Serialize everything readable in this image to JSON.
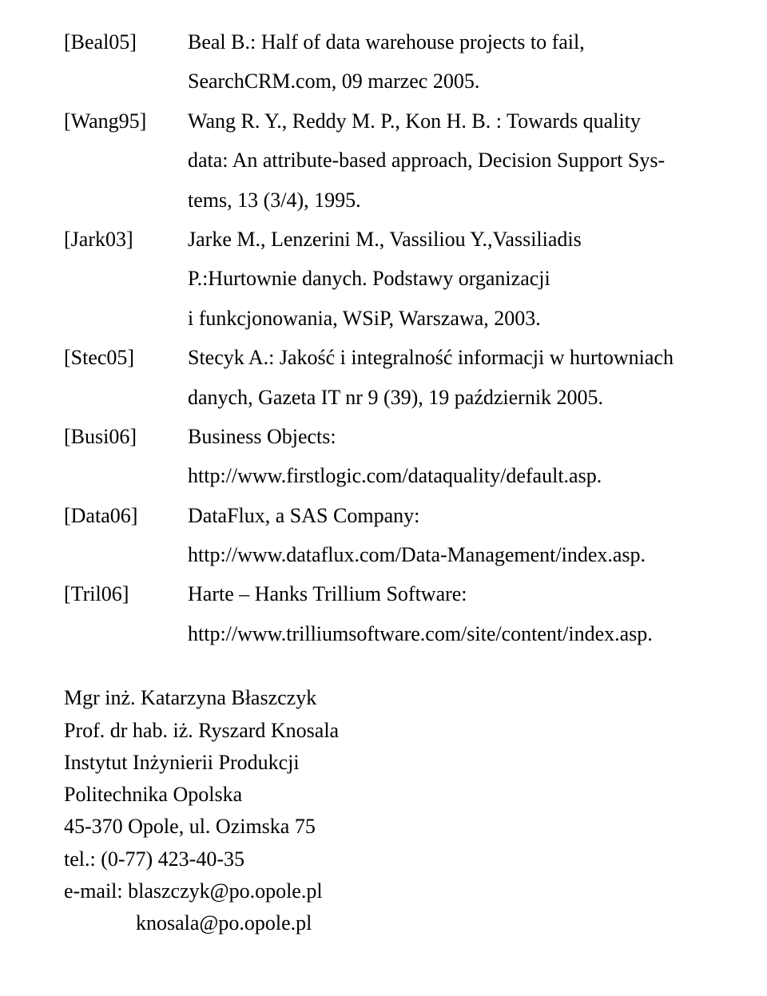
{
  "refs": [
    {
      "key": "[Beal05]",
      "lines": [
        {
          "text": "Beal B.: Half of data warehouse projects to fail,",
          "justify": true
        },
        {
          "text": "SearchCRM.com, 09 marzec 2005.",
          "justify": false
        }
      ]
    },
    {
      "key": "[Wang95]",
      "lines": [
        {
          "text": "Wang R. Y., Reddy M. P., Kon H. B. : Towards quality",
          "justify": true
        },
        {
          "text": "data: An attribute-based approach, Decision Support Sys-",
          "justify": true
        },
        {
          "text": "tems, 13 (3/4), 1995.",
          "justify": false
        }
      ]
    },
    {
      "key": "[Jark03]",
      "lines": [
        {
          "text": "Jarke M., Lenzerini M., Vassiliou Y.,Vassiliadis",
          "justify": true
        },
        {
          "text": "P.:Hurtownie danych. Podstawy organizacji",
          "justify": true
        },
        {
          "text": "i funkcjonowania, WSiP, Warszawa, 2003.",
          "justify": false
        }
      ]
    },
    {
      "key": "[Stec05]",
      "lines": [
        {
          "text": "Stecyk A.: Jakość i integralność informacji w hurtowniach",
          "justify": true
        },
        {
          "text": "danych, Gazeta IT nr 9 (39), 19 październik 2005.",
          "justify": false
        }
      ]
    },
    {
      "key": "[Busi06]",
      "lines": [
        {
          "text": "Business Objects:",
          "justify": false
        },
        {
          "text": "http://www.firstlogic.com/dataquality/default.asp.",
          "justify": false
        }
      ]
    },
    {
      "key": "[Data06]",
      "lines": [
        {
          "text": "DataFlux, a SAS Company:",
          "justify": false
        },
        {
          "text": "http://www.dataflux.com/Data-Management/index.asp.",
          "justify": false
        }
      ]
    },
    {
      "key": "[Tril06]",
      "lines": [
        {
          "text": "Harte – Hanks Trillium Software:",
          "justify": false
        },
        {
          "text": "http://www.trilliumsoftware.com/site/content/index.asp.",
          "justify": false
        }
      ]
    }
  ],
  "contact": {
    "l1": "Mgr inż. Katarzyna Błaszczyk",
    "l2": "Prof. dr hab. iż. Ryszard Knosala",
    "l3": "Instytut Inżynierii Produkcji",
    "l4": "Politechnika Opolska",
    "l5": "45-370 Opole, ul. Ozimska 75",
    "l6": "tel.: (0-77) 423-40-35",
    "l7": "e-mail: blaszczyk@po.opole.pl",
    "l8": "knosala@po.opole.pl"
  }
}
